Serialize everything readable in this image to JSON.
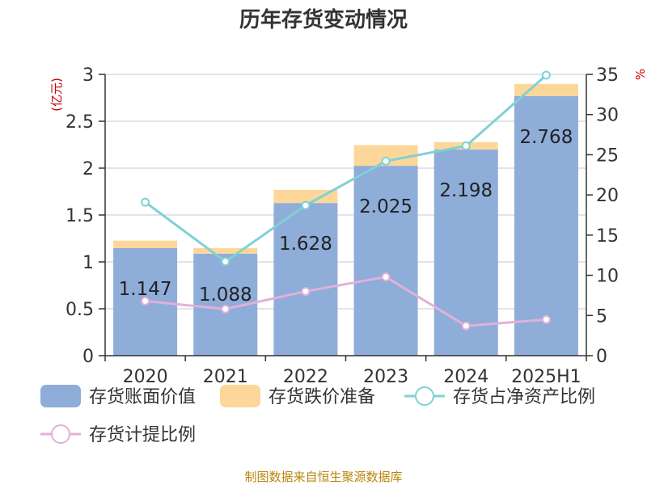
{
  "title": "历年存货变动情况",
  "source": "制图数据来自恒生聚源数据库",
  "chart_data": {
    "type": "bar",
    "categories": [
      "2020",
      "2021",
      "2022",
      "2023",
      "2024",
      "2025H1"
    ],
    "left_axis": {
      "unit": "(亿元)",
      "ylim": [
        0,
        3
      ],
      "ticks": [
        "0",
        "0.5",
        "1",
        "1.5",
        "2",
        "2.5",
        "3"
      ]
    },
    "right_axis": {
      "unit": "%",
      "ylim": [
        0,
        35
      ],
      "ticks": [
        "0",
        "5",
        "10",
        "15",
        "20",
        "25",
        "30",
        "35"
      ]
    },
    "grid": true,
    "legend_position": "bottom",
    "series": [
      {
        "name": "存货账面价值",
        "type": "bar",
        "stack": "inventory",
        "axis": "left",
        "color": "#8eadd9",
        "values": [
          1.147,
          1.088,
          1.628,
          2.025,
          2.198,
          2.768
        ],
        "labels": [
          "1.147",
          "1.088",
          "1.628",
          "2.025",
          "2.198",
          "2.768"
        ]
      },
      {
        "name": "存货跌价准备",
        "type": "bar",
        "stack": "inventory",
        "axis": "left",
        "color": "#fdd799",
        "values": [
          0.08,
          0.06,
          0.14,
          0.22,
          0.08,
          0.13
        ]
      },
      {
        "name": "存货占净资产比例",
        "type": "line",
        "axis": "right",
        "color": "#7fd1d4",
        "values": [
          19.1,
          11.7,
          18.7,
          24.2,
          26.1,
          34.9
        ]
      },
      {
        "name": "存货计提比例",
        "type": "line",
        "axis": "right",
        "color": "#e2b0d8",
        "values": [
          6.8,
          5.8,
          8.0,
          9.8,
          3.7,
          4.5
        ]
      }
    ]
  }
}
